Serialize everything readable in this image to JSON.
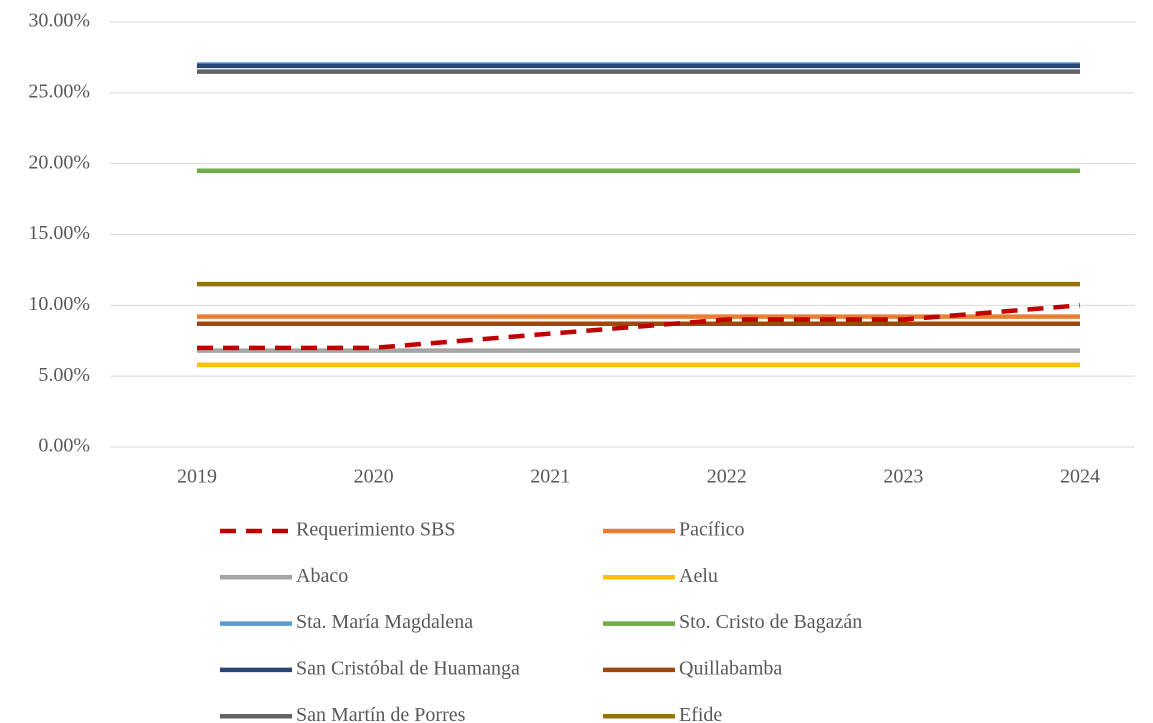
{
  "chart_data": {
    "type": "line",
    "categories": [
      "2019",
      "2020",
      "2021",
      "2022",
      "2023",
      "2024"
    ],
    "ylim": [
      0,
      30
    ],
    "yticks": [
      {
        "value": 0,
        "label": "0.00%"
      },
      {
        "value": 5,
        "label": "5.00%"
      },
      {
        "value": 10,
        "label": "10.00%"
      },
      {
        "value": 15,
        "label": "15.00%"
      },
      {
        "value": 20,
        "label": "20.00%"
      },
      {
        "value": 25,
        "label": "25.00%"
      },
      {
        "value": 30,
        "label": "30.00%"
      }
    ],
    "grid": true,
    "legend": "bottom",
    "series": [
      {
        "name": "Requerimiento SBS",
        "color": "#c00000",
        "dashed": true,
        "values": [
          7,
          7,
          8,
          9,
          9,
          10
        ]
      },
      {
        "name": "Pacífico",
        "color": "#ed7d31",
        "values": [
          9.2,
          9.2,
          9.2,
          9.2,
          9.2,
          9.2
        ]
      },
      {
        "name": "Abaco",
        "color": "#a5a5a5",
        "values": [
          6.8,
          6.8,
          6.8,
          6.8,
          6.8,
          6.8
        ]
      },
      {
        "name": "Aelu",
        "color": "#ffc000",
        "values": [
          5.8,
          5.8,
          5.8,
          5.8,
          5.8,
          5.8
        ]
      },
      {
        "name": "Sta. María Magdalena",
        "color": "#5b9bd5",
        "values": [
          27,
          27,
          27,
          27,
          27,
          27
        ]
      },
      {
        "name": "Sto. Cristo de Bagazán",
        "color": "#70ad47",
        "values": [
          19.5,
          19.5,
          19.5,
          19.5,
          19.5,
          19.5
        ]
      },
      {
        "name": "San Cristóbal de Huamanga",
        "color": "#264478",
        "values": [
          26.9,
          26.9,
          26.9,
          26.9,
          26.9,
          26.9
        ]
      },
      {
        "name": "Quillabamba",
        "color": "#9e480e",
        "values": [
          8.7,
          8.7,
          8.7,
          8.7,
          8.7,
          8.7
        ]
      },
      {
        "name": "San Martín de Porres",
        "color": "#636363",
        "values": [
          26.5,
          26.5,
          26.5,
          26.5,
          26.5,
          26.5
        ]
      },
      {
        "name": "Efide",
        "color": "#997300",
        "values": [
          11.5,
          11.5,
          11.5,
          11.5,
          11.5,
          11.5
        ]
      }
    ]
  }
}
